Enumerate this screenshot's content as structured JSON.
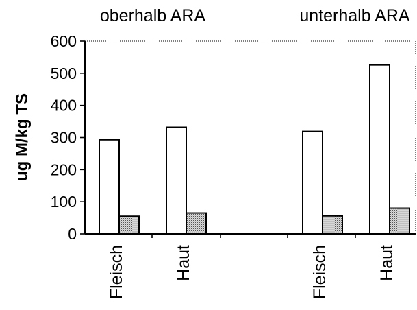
{
  "chart_data": {
    "type": "bar",
    "title": "",
    "xlabel": "",
    "ylabel": "ug M/kg TS",
    "ylim": [
      0,
      600
    ],
    "yticks": [
      0,
      100,
      200,
      300,
      400,
      500,
      600
    ],
    "grid": false,
    "legend": "none",
    "groups": [
      "oberhalb ARA",
      "unterhalb ARA"
    ],
    "categories": [
      "Fleisch",
      "Haut",
      "Fleisch",
      "Haut"
    ],
    "category_group": [
      0,
      0,
      1,
      1
    ],
    "series": [
      {
        "values": [
          293,
          332,
          319,
          526
        ],
        "color": "#ffffff"
      },
      {
        "values": [
          55,
          65,
          56,
          80
        ],
        "color": "#d8d8d8",
        "pattern": "dotted"
      }
    ]
  }
}
